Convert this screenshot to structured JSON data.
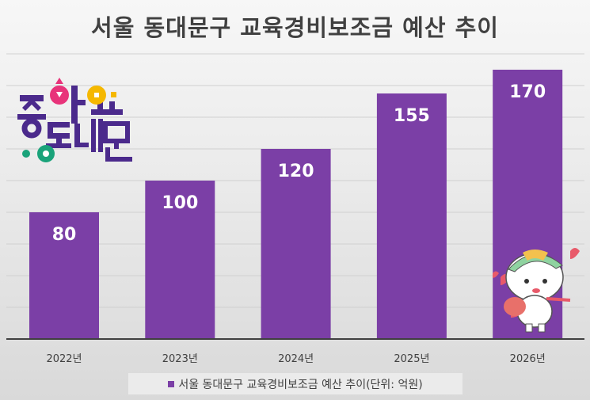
{
  "chart_data": {
    "type": "bar",
    "title": "서울 동대문구 교육경비보조금 예산 추이",
    "categories": [
      "2022년",
      "2023년",
      "2024년",
      "2025년",
      "2026년"
    ],
    "series": [
      {
        "name": "서울 동대문구 교육경비보조금 예산 추이(단위: 억원)",
        "values": [
          80,
          100,
          120,
          155,
          170
        ]
      }
    ],
    "ylim": [
      0,
      180
    ],
    "ygrid_step": 20,
    "grid": true,
    "y_tick_labels_shown": false,
    "legend_position": "bottom",
    "bar_color": "#7b3fa6",
    "label_color": "#ffffff"
  },
  "logo": {
    "text": "좋아요 동대문",
    "colors": {
      "purple": "#4b2a8c",
      "pink": "#e8337a",
      "yellow": "#f5b800",
      "green": "#1aa37a"
    }
  }
}
